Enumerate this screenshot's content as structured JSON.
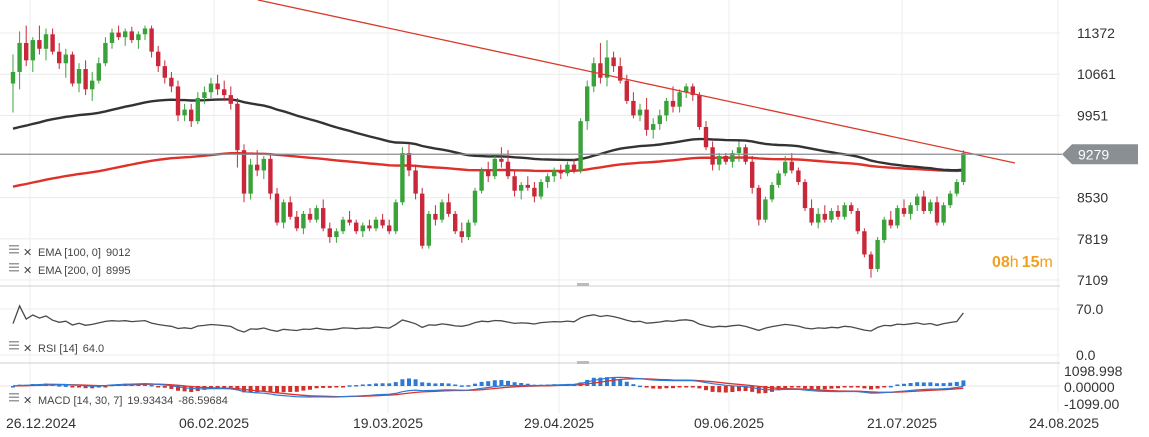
{
  "chart_data": {
    "type": "candlestick",
    "title": "",
    "x_labels": [
      "26.12.2024",
      "06.02.2025",
      "19.03.2025",
      "29.04.2025",
      "09.06.2025",
      "21.07.2025",
      "24.08.2025"
    ],
    "price_axis": {
      "ticks": [
        "11372",
        "10661",
        "9951",
        "9279",
        "8530",
        "7819",
        "7109"
      ],
      "tick_values": [
        11372,
        10661,
        9951,
        9279,
        8530,
        7819,
        7109
      ],
      "range": [
        6950,
        11800
      ],
      "last_price": "9279",
      "last_price_value": 9279
    },
    "timer": {
      "hours": "08",
      "h_unit": "h",
      "minutes": "15",
      "m_unit": "m"
    },
    "indicators": {
      "ema100": {
        "label": "EMA [100, 0]",
        "value": "9012",
        "color": "#333333"
      },
      "ema200": {
        "label": "EMA [200, 0]",
        "value": "8995",
        "color": "#e0302a"
      },
      "rsi": {
        "label": "RSI [14]",
        "value": "64.0",
        "ticks": [
          "70.0",
          "0.0"
        ]
      },
      "macd": {
        "label": "MACD [14, 30, 7]",
        "value1": "19.93434",
        "value2": "-86.59684",
        "ticks": [
          "1098.998",
          "0.00000",
          "-1099.00"
        ]
      }
    },
    "trendline": {
      "start_price": 12400,
      "end_price": 9280,
      "color": "#d93a2b"
    },
    "candles": [
      [
        0,
        10500,
        11000,
        10000,
        10700
      ],
      [
        1,
        10700,
        11400,
        10400,
        11200
      ],
      [
        2,
        11200,
        11500,
        10800,
        10900
      ],
      [
        3,
        10900,
        11300,
        10700,
        11250
      ],
      [
        4,
        11250,
        11500,
        11000,
        11100
      ],
      [
        5,
        11100,
        11450,
        10900,
        11350
      ],
      [
        6,
        11350,
        11450,
        11000,
        11050
      ],
      [
        7,
        11050,
        11200,
        10750,
        10850
      ],
      [
        8,
        10850,
        11100,
        10600,
        11000
      ],
      [
        9,
        11000,
        11050,
        10450,
        10500
      ],
      [
        10,
        10500,
        10850,
        10350,
        10750
      ],
      [
        11,
        10750,
        10900,
        10300,
        10400
      ],
      [
        12,
        10400,
        10700,
        10200,
        10550
      ],
      [
        13,
        10550,
        10950,
        10500,
        10850
      ],
      [
        14,
        10850,
        11300,
        10800,
        11200
      ],
      [
        15,
        11200,
        11450,
        11100,
        11380
      ],
      [
        16,
        11380,
        11500,
        11250,
        11300
      ],
      [
        17,
        11300,
        11450,
        11150,
        11400
      ],
      [
        18,
        11400,
        11480,
        11200,
        11250
      ],
      [
        19,
        11250,
        11400,
        11100,
        11350
      ],
      [
        20,
        11350,
        11500,
        11250,
        11450
      ],
      [
        21,
        11450,
        11500,
        10950,
        11050
      ],
      [
        22,
        11050,
        11150,
        10700,
        10800
      ],
      [
        23,
        10800,
        10900,
        10500,
        10600
      ],
      [
        24,
        10600,
        10700,
        10350,
        10450
      ],
      [
        25,
        10450,
        10550,
        9850,
        9950
      ],
      [
        26,
        9950,
        10150,
        9850,
        10050
      ],
      [
        27,
        10050,
        10150,
        9750,
        9850
      ],
      [
        28,
        9850,
        10350,
        9800,
        10250
      ],
      [
        29,
        10250,
        10450,
        10150,
        10350
      ],
      [
        30,
        10350,
        10600,
        10250,
        10500
      ],
      [
        31,
        10500,
        10650,
        10300,
        10400
      ],
      [
        32,
        10400,
        10550,
        10200,
        10300
      ],
      [
        33,
        10300,
        10450,
        10050,
        10150
      ],
      [
        34,
        10150,
        10250,
        9050,
        9350
      ],
      [
        35,
        9350,
        9450,
        8450,
        8600
      ],
      [
        36,
        8600,
        9200,
        8500,
        9100
      ],
      [
        37,
        9100,
        9350,
        8900,
        9000
      ],
      [
        38,
        9000,
        9250,
        8850,
        9200
      ],
      [
        39,
        9200,
        9300,
        8500,
        8600
      ],
      [
        40,
        8600,
        8700,
        8050,
        8100
      ],
      [
        41,
        8100,
        8500,
        8000,
        8450
      ],
      [
        42,
        8450,
        8550,
        8150,
        8200
      ],
      [
        43,
        8200,
        8300,
        7950,
        8000
      ],
      [
        44,
        8000,
        8300,
        7900,
        8250
      ],
      [
        45,
        8250,
        8350,
        8100,
        8150
      ],
      [
        46,
        8150,
        8400,
        8100,
        8350
      ],
      [
        47,
        8350,
        8500,
        7950,
        8000
      ],
      [
        48,
        8000,
        8100,
        7750,
        7850
      ],
      [
        49,
        7850,
        8000,
        7750,
        7950
      ],
      [
        50,
        7950,
        8200,
        7900,
        8150
      ],
      [
        51,
        8150,
        8300,
        8050,
        8100
      ],
      [
        52,
        8100,
        8150,
        7900,
        7950
      ],
      [
        53,
        7950,
        8100,
        7850,
        8050
      ],
      [
        54,
        8050,
        8150,
        7950,
        8000
      ],
      [
        55,
        8000,
        8200,
        7950,
        8150
      ],
      [
        56,
        8150,
        8250,
        8000,
        8050
      ],
      [
        57,
        8050,
        8150,
        7900,
        7950
      ],
      [
        58,
        7950,
        8500,
        7900,
        8450
      ],
      [
        59,
        8450,
        9400,
        8400,
        9300
      ],
      [
        60,
        9300,
        9450,
        8900,
        9000
      ],
      [
        61,
        9000,
        9100,
        8500,
        8600
      ],
      [
        62,
        8600,
        8700,
        7650,
        7700
      ],
      [
        63,
        7700,
        8300,
        7650,
        8250
      ],
      [
        64,
        8250,
        8400,
        8050,
        8150
      ],
      [
        65,
        8150,
        8500,
        8100,
        8450
      ],
      [
        66,
        8450,
        8600,
        8200,
        8250
      ],
      [
        67,
        8250,
        8300,
        7900,
        7950
      ],
      [
        68,
        7950,
        8100,
        7750,
        7850
      ],
      [
        69,
        7850,
        8150,
        7800,
        8100
      ],
      [
        70,
        8100,
        8700,
        8050,
        8650
      ],
      [
        71,
        8650,
        9050,
        8600,
        9000
      ],
      [
        72,
        9000,
        9150,
        8800,
        8900
      ],
      [
        73,
        8900,
        9250,
        8850,
        9200
      ],
      [
        74,
        9200,
        9400,
        9050,
        9150
      ],
      [
        75,
        9150,
        9350,
        8850,
        8900
      ],
      [
        76,
        8900,
        9000,
        8550,
        8650
      ],
      [
        77,
        8650,
        8800,
        8500,
        8750
      ],
      [
        78,
        8750,
        8900,
        8650,
        8700
      ],
      [
        79,
        8700,
        8800,
        8450,
        8550
      ],
      [
        80,
        8550,
        8850,
        8500,
        8800
      ],
      [
        81,
        8800,
        8950,
        8700,
        8900
      ],
      [
        82,
        8900,
        9050,
        8800,
        9000
      ],
      [
        83,
        9000,
        9100,
        8850,
        8950
      ],
      [
        84,
        8950,
        9150,
        8900,
        9100
      ],
      [
        85,
        9100,
        9200,
        8950,
        9000
      ],
      [
        86,
        9000,
        9900,
        8950,
        9850
      ],
      [
        87,
        9850,
        10550,
        9700,
        10450
      ],
      [
        88,
        10450,
        10950,
        10350,
        10850
      ],
      [
        89,
        10850,
        11200,
        10500,
        10600
      ],
      [
        90,
        10600,
        11250,
        10450,
        10950
      ],
      [
        91,
        10950,
        11050,
        10700,
        10800
      ],
      [
        92,
        10800,
        10950,
        10500,
        10550
      ],
      [
        93,
        10550,
        10650,
        10150,
        10200
      ],
      [
        94,
        10200,
        10350,
        9900,
        9950
      ],
      [
        95,
        9950,
        10150,
        9850,
        10050
      ],
      [
        96,
        10050,
        10250,
        9600,
        9700
      ],
      [
        97,
        9700,
        9900,
        9550,
        9800
      ],
      [
        98,
        9800,
        10050,
        9700,
        9950
      ],
      [
        99,
        9950,
        10250,
        9850,
        10200
      ],
      [
        100,
        10200,
        10450,
        10000,
        10100
      ],
      [
        101,
        10100,
        10400,
        10000,
        10350
      ],
      [
        102,
        10350,
        10500,
        10250,
        10450
      ],
      [
        103,
        10450,
        10500,
        10200,
        10300
      ],
      [
        104,
        10300,
        10350,
        9700,
        9750
      ],
      [
        105,
        9750,
        9850,
        9350,
        9400
      ],
      [
        106,
        9400,
        9500,
        9000,
        9100
      ],
      [
        107,
        9100,
        9300,
        9000,
        9250
      ],
      [
        108,
        9250,
        9300,
        9100,
        9150
      ],
      [
        109,
        9150,
        9350,
        9050,
        9300
      ],
      [
        110,
        9300,
        9500,
        9150,
        9400
      ],
      [
        111,
        9400,
        9450,
        9100,
        9150
      ],
      [
        112,
        9150,
        9250,
        8600,
        8700
      ],
      [
        113,
        8700,
        8750,
        8050,
        8150
      ],
      [
        114,
        8150,
        8550,
        8100,
        8500
      ],
      [
        115,
        8500,
        8800,
        8450,
        8750
      ],
      [
        116,
        8750,
        9000,
        8700,
        8950
      ],
      [
        117,
        8950,
        9250,
        8900,
        9150
      ],
      [
        118,
        9150,
        9300,
        8950,
        9000
      ],
      [
        119,
        9000,
        9050,
        8750,
        8800
      ],
      [
        120,
        8800,
        8850,
        8300,
        8350
      ],
      [
        121,
        8350,
        8500,
        8050,
        8100
      ],
      [
        122,
        8100,
        8350,
        8000,
        8250
      ],
      [
        123,
        8250,
        8400,
        8100,
        8150
      ],
      [
        124,
        8150,
        8350,
        8100,
        8300
      ],
      [
        125,
        8300,
        8400,
        8150,
        8200
      ],
      [
        126,
        8200,
        8450,
        8150,
        8400
      ],
      [
        127,
        8400,
        8450,
        8250,
        8300
      ],
      [
        128,
        8300,
        8350,
        7900,
        7950
      ],
      [
        129,
        7950,
        8000,
        7500,
        7550
      ],
      [
        130,
        7550,
        7600,
        7150,
        7300
      ],
      [
        131,
        7300,
        7850,
        7250,
        7800
      ],
      [
        132,
        7800,
        8200,
        7750,
        8150
      ],
      [
        133,
        8150,
        8300,
        8000,
        8050
      ],
      [
        134,
        8050,
        8400,
        8000,
        8350
      ],
      [
        135,
        8350,
        8500,
        8200,
        8250
      ],
      [
        136,
        8250,
        8450,
        8150,
        8400
      ],
      [
        137,
        8400,
        8600,
        8300,
        8550
      ],
      [
        138,
        8550,
        8650,
        8250,
        8300
      ],
      [
        139,
        8300,
        8500,
        8250,
        8450
      ],
      [
        140,
        8450,
        8550,
        8050,
        8100
      ],
      [
        141,
        8100,
        8450,
        8050,
        8400
      ],
      [
        142,
        8400,
        8650,
        8350,
        8600
      ],
      [
        143,
        8600,
        8850,
        8550,
        8800
      ],
      [
        144,
        8800,
        9350,
        8750,
        9300
      ]
    ]
  }
}
